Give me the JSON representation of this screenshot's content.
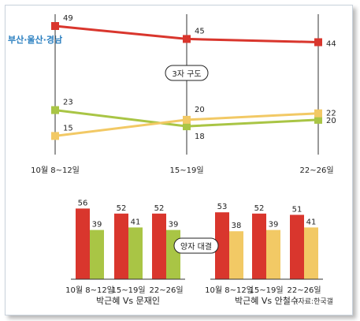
{
  "chart_data": [
    {
      "type": "line",
      "title": "부산·울산·경남",
      "annotation": "3자 구도",
      "categories": [
        "10월 8~12일",
        "15~19일",
        "22~26일"
      ],
      "series": [
        {
          "values": [
            49,
            45,
            44
          ],
          "color": "#d9362d"
        },
        {
          "values": [
            23,
            18,
            20
          ],
          "color": "#a9c545"
        },
        {
          "values": [
            15,
            20,
            22
          ],
          "color": "#f2c965"
        }
      ],
      "grid": "vertical lines at each period",
      "legend": "none"
    },
    {
      "type": "bar",
      "annotation": "양자 대결",
      "groups": [
        {
          "label": "박근혜 Vs 문재인",
          "categories": [
            "10월 8~12일",
            "15~19일",
            "22~26일"
          ],
          "series": [
            {
              "values": [
                56,
                52,
                52
              ],
              "color": "#d9362d"
            },
            {
              "values": [
                39,
                41,
                39
              ],
              "color": "#a9c545"
            }
          ]
        },
        {
          "label": "박근혜 Vs 안철수",
          "categories": [
            "10월 8~12일",
            "15~19일",
            "22~26일"
          ],
          "series": [
            {
              "values": [
                53,
                52,
                51
              ],
              "color": "#d9362d"
            },
            {
              "values": [
                38,
                39,
                41
              ],
              "color": "#f2c965"
            }
          ]
        }
      ]
    }
  ],
  "source": "(자료:한국갤"
}
